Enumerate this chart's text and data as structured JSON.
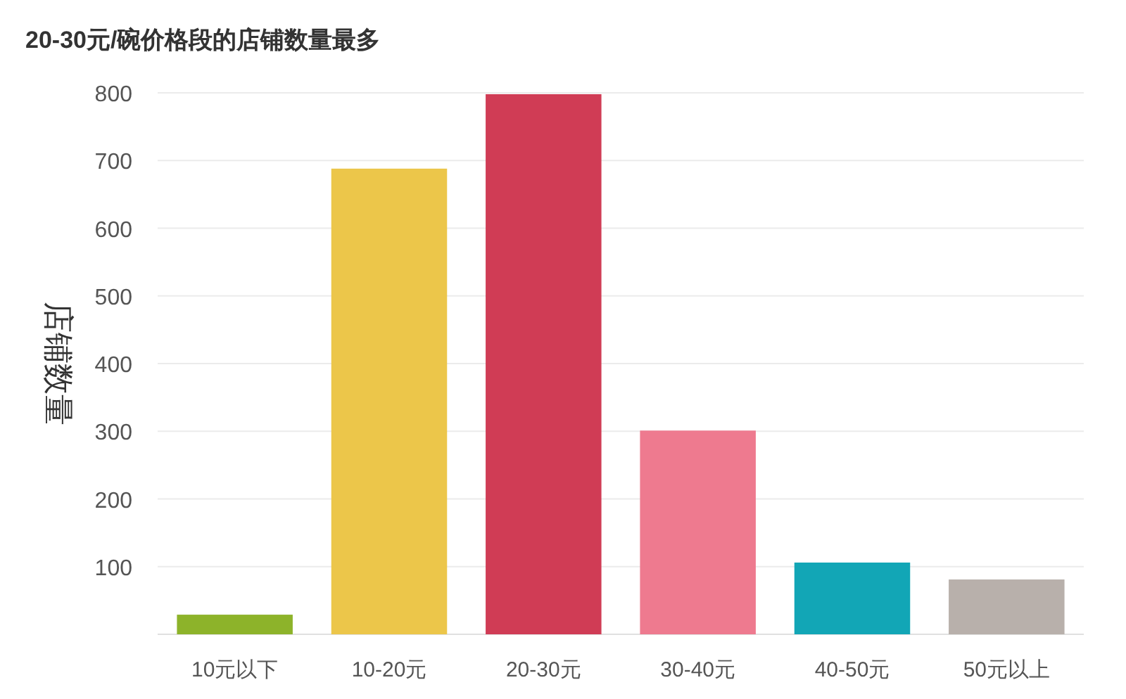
{
  "chart_data": {
    "type": "bar",
    "title": "20-30元/碗价格段的店铺数量最多",
    "ylabel": "店铺数量",
    "categories": [
      "10元以下",
      "10-20元",
      "20-30元",
      "30-40元",
      "40-50元",
      "50元以上"
    ],
    "values": [
      29,
      688,
      798,
      301,
      106,
      81
    ],
    "colors": [
      "#8db32a",
      "#ecc64a",
      "#d03c55",
      "#ee7a8f",
      "#12a6b6",
      "#b8b0ab"
    ],
    "ylim": [
      0,
      800
    ],
    "yticks": [
      100,
      200,
      300,
      400,
      500,
      600,
      700,
      800
    ],
    "grid": "y"
  }
}
